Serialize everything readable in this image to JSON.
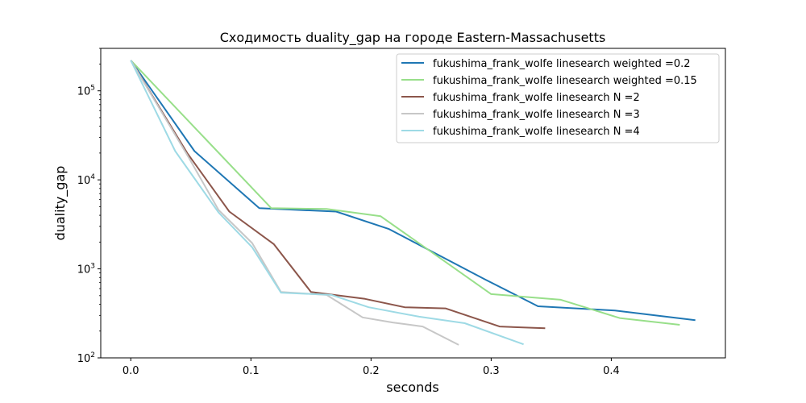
{
  "chart_data": {
    "type": "line",
    "title": "Сходимость duality_gap на городе Eastern-Massachusetts",
    "xlabel": "seconds",
    "ylabel": "duality_gap",
    "xlim": [
      -0.025,
      0.495
    ],
    "ylim": [
      100,
      300000
    ],
    "yscale": "log",
    "x_ticks": [
      0.0,
      0.1,
      0.2,
      0.3,
      0.4
    ],
    "x_tick_labels": [
      "0.0",
      "0.1",
      "0.2",
      "0.3",
      "0.4"
    ],
    "y_ticks": [
      100,
      1000,
      10000,
      100000
    ],
    "y_tick_labels": [
      {
        "base": "10",
        "exp": "2"
      },
      {
        "base": "10",
        "exp": "3"
      },
      {
        "base": "10",
        "exp": "4"
      },
      {
        "base": "10",
        "exp": "5"
      }
    ],
    "grid": false,
    "legend_position": "top-right",
    "series": [
      {
        "name": "fukushima_frank_wolfe linesearch weighted =0.2",
        "color": "#1f77b4",
        "x": [
          0.0,
          0.053,
          0.107,
          0.171,
          0.215,
          0.295,
          0.339,
          0.403,
          0.47
        ],
        "y": [
          220000,
          21000,
          4800,
          4400,
          2800,
          760,
          380,
          340,
          265
        ]
      },
      {
        "name": "fukushima_frank_wolfe linesearch weighted =0.15",
        "color": "#98df8a",
        "x": [
          0.0,
          0.117,
          0.163,
          0.208,
          0.3,
          0.358,
          0.407,
          0.457
        ],
        "y": [
          220000,
          4800,
          4700,
          3900,
          520,
          450,
          280,
          235
        ]
      },
      {
        "name": "fukushima_frank_wolfe linesearch N =2",
        "color": "#8c564b",
        "x": [
          0.0,
          0.047,
          0.082,
          0.119,
          0.15,
          0.195,
          0.228,
          0.262,
          0.307,
          0.345
        ],
        "y": [
          220000,
          20000,
          4400,
          1900,
          550,
          460,
          370,
          360,
          225,
          215
        ]
      },
      {
        "name": "fukushima_frank_wolfe linesearch N =3",
        "color": "#c7c7c7",
        "x": [
          0.0,
          0.048,
          0.073,
          0.101,
          0.125,
          0.163,
          0.193,
          0.218,
          0.243,
          0.273
        ],
        "y": [
          220000,
          18000,
          4600,
          1950,
          550,
          510,
          285,
          250,
          225,
          140
        ]
      },
      {
        "name": "fukushima_frank_wolfe linesearch N =4",
        "color": "#9edae5",
        "x": [
          0.0,
          0.037,
          0.073,
          0.101,
          0.125,
          0.167,
          0.198,
          0.24,
          0.278,
          0.327
        ],
        "y": [
          220000,
          21000,
          4300,
          1750,
          540,
          510,
          370,
          290,
          245,
          142
        ]
      }
    ]
  }
}
